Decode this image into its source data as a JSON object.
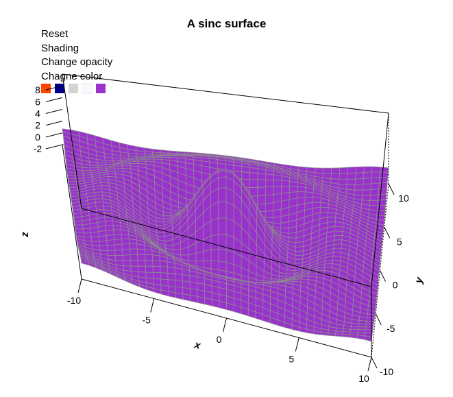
{
  "title": "A sinc surface",
  "controls": {
    "reset": "Reset",
    "shading": "Shading",
    "opacity": "Change opacity",
    "color": "Chagne color"
  },
  "swatches": [
    {
      "name": "orange",
      "color": "#ff4500"
    },
    {
      "name": "navy",
      "color": "#00008b"
    },
    {
      "name": "lightgray",
      "color": "#d3d3d3"
    },
    {
      "name": "ghostwhite",
      "color": "#f8f8ff"
    },
    {
      "name": "purple",
      "color": "#9932cc"
    }
  ],
  "chart_data": {
    "type": "surface",
    "title": "A sinc surface",
    "xlabel": "x",
    "ylabel": "y",
    "zlabel": "z",
    "function": "z = 10 * sin(r) / r, r = sqrt(x^2 + y^2)",
    "xlim": [
      -10,
      10
    ],
    "ylim": [
      -10,
      10
    ],
    "zlim": [
      -2,
      10
    ],
    "x_ticks": [
      -10,
      -5,
      0,
      5,
      10
    ],
    "y_ticks": [
      -10,
      -5,
      0,
      5,
      10
    ],
    "z_ticks": [
      -2,
      0,
      2,
      4,
      6,
      8
    ],
    "grid_size": 41,
    "surface_color": "#9932cc",
    "mesh_color": "#8c8c8c",
    "box": true
  }
}
